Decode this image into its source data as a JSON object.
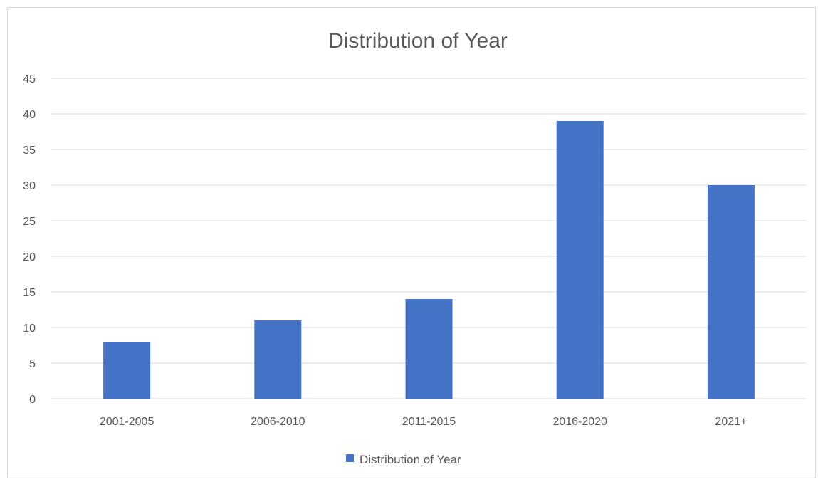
{
  "chart_data": {
    "type": "bar",
    "title": "Distribution of Year",
    "xlabel": "",
    "ylabel": "",
    "categories": [
      "2001-2005",
      "2006-2010",
      "2011-2015",
      "2016-2020",
      "2021+"
    ],
    "series": [
      {
        "name": "Distribution of Year",
        "values": [
          8,
          11,
          14,
          39,
          30
        ],
        "color": "#4472c4"
      }
    ],
    "ylim": [
      0,
      45
    ],
    "yticks": [
      0,
      5,
      10,
      15,
      20,
      25,
      30,
      35,
      40,
      45
    ],
    "grid": true,
    "legend_position": "bottom"
  }
}
